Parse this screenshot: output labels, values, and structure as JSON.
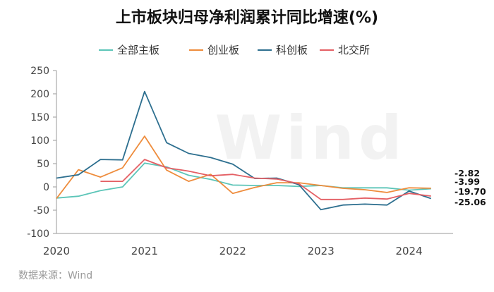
{
  "chart_data": {
    "type": "line",
    "title": "上市板块归母净利润累计同比增速(%)",
    "source": "数据来源：Wind",
    "watermark": "Wind",
    "ylim": [
      -100,
      250
    ],
    "yticks": [
      250,
      200,
      150,
      100,
      50,
      0,
      -50,
      -100
    ],
    "xlim": [
      2020.0,
      2024.5
    ],
    "xticks": [
      {
        "label": "2020",
        "x": 2020.0
      },
      {
        "label": "2021",
        "x": 2021.0
      },
      {
        "label": "2022",
        "x": 2022.0
      },
      {
        "label": "2023",
        "x": 2023.0
      },
      {
        "label": "2024",
        "x": 2024.0
      }
    ],
    "x": [
      2020.0,
      2020.25,
      2020.5,
      2020.75,
      2021.0,
      2021.25,
      2021.5,
      2021.75,
      2022.0,
      2022.25,
      2022.5,
      2022.75,
      2023.0,
      2023.25,
      2023.5,
      2023.75,
      2024.0,
      2024.25
    ],
    "legend_position": "top-center",
    "grid": false,
    "series": [
      {
        "name": "全部主板",
        "color": "#5cc5b8",
        "values": [
          -24,
          -20,
          -8,
          0,
          51,
          43,
          25,
          16,
          4,
          3,
          3,
          1,
          3,
          -2,
          -2,
          -2,
          -7,
          -3.99
        ]
      },
      {
        "name": "创业板",
        "color": "#ee8c3c",
        "values": [
          -25,
          37,
          21,
          41,
          109,
          36,
          12,
          27,
          -14,
          -1,
          9,
          9,
          3,
          -3,
          -6,
          -12,
          -2,
          -2.82
        ]
      },
      {
        "name": "科创板",
        "color": "#2d6f8f",
        "values": [
          19,
          26,
          59,
          58,
          205,
          95,
          72,
          63,
          49,
          18,
          19,
          5,
          -49,
          -39,
          -37,
          -39,
          -9,
          -25.06
        ]
      },
      {
        "name": "北交所",
        "color": "#e45f64",
        "values": [
          null,
          null,
          12,
          12,
          59,
          41,
          34,
          24,
          27,
          19,
          17,
          7,
          -27,
          -27,
          -24,
          -26,
          -14,
          -19.7
        ]
      }
    ],
    "end_labels": [
      {
        "text": "-2.82"
      },
      {
        "text": "-3.99"
      },
      {
        "text": "-19.70"
      },
      {
        "text": "-25.06"
      }
    ]
  }
}
